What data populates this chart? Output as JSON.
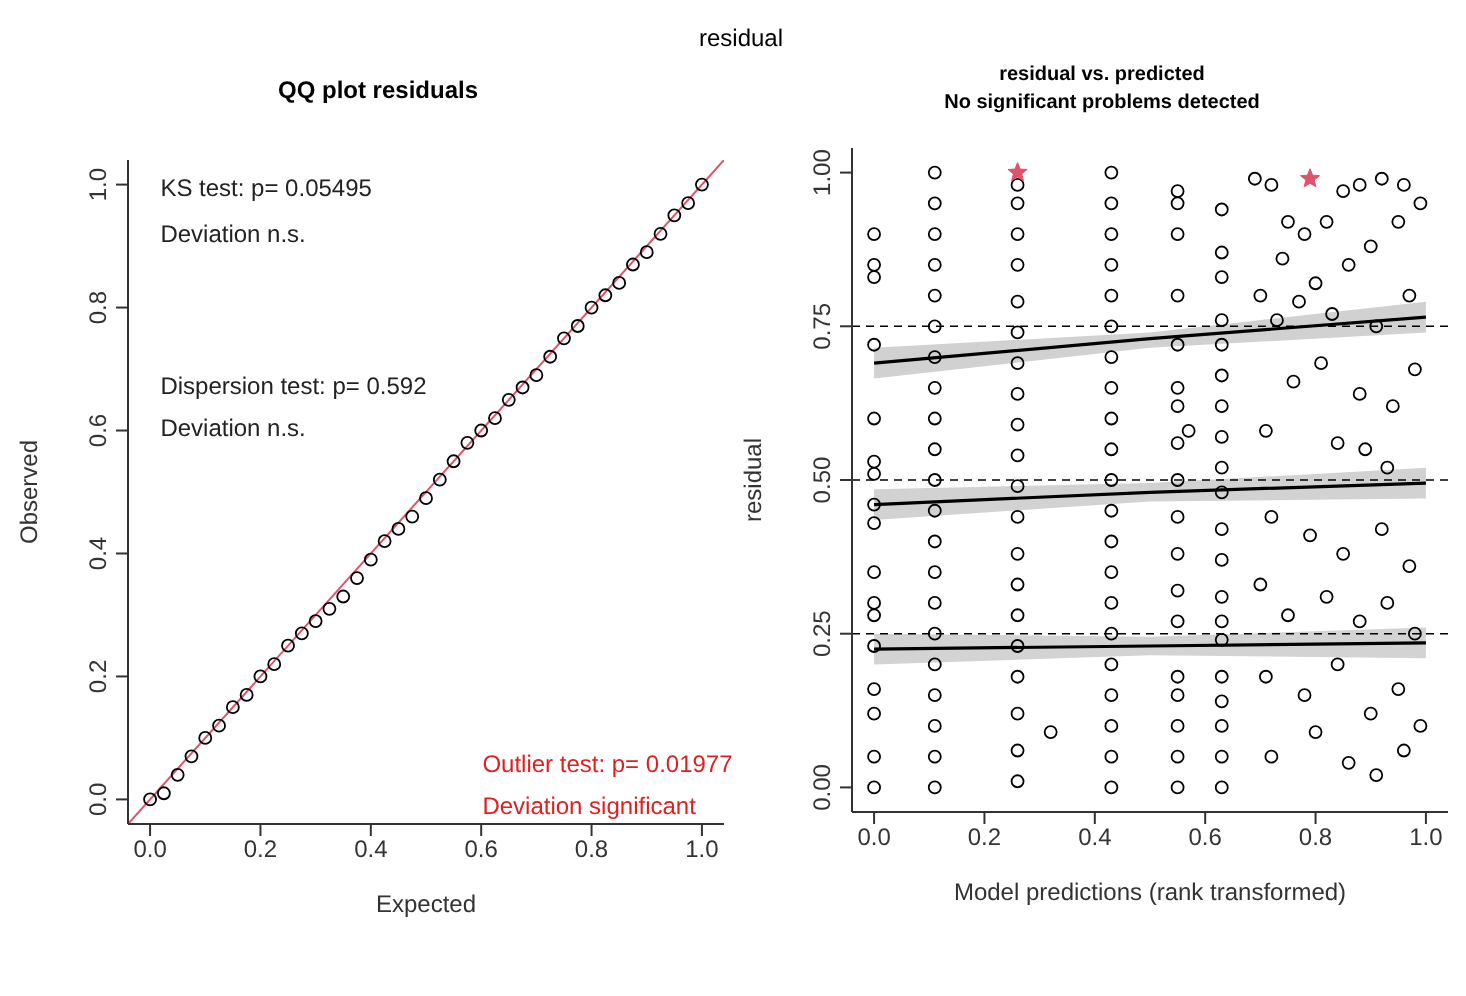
{
  "chart_data": [
    {
      "type": "scatter",
      "title": "QQ plot residuals",
      "xlabel": "Expected",
      "ylabel": "Observed",
      "marker": "circle",
      "annotations": [
        "residual",
        "KS test: p= 0.05495",
        "Deviation  n.s.",
        "Dispersion test: p= 0.592",
        "Deviation  n.s.",
        "Outlier test: p= 0.01977",
        "Deviation  significant"
      ],
      "xlim": [
        -0.04,
        1.04
      ],
      "ylim": [
        -0.04,
        1.04
      ],
      "xticks": [
        {
          "value": 0,
          "label": "0.0"
        },
        {
          "value": 0.2,
          "label": "0.2"
        },
        {
          "value": 0.4,
          "label": "0.4"
        },
        {
          "value": 0.6,
          "label": "0.6"
        },
        {
          "value": 0.8,
          "label": "0.8"
        },
        {
          "value": 1,
          "label": "1.0"
        }
      ],
      "yticks": [
        {
          "value": 0,
          "label": "0.0"
        },
        {
          "value": 0.2,
          "label": "0.2"
        },
        {
          "value": 0.4,
          "label": "0.4"
        },
        {
          "value": 0.6,
          "label": "0.6"
        },
        {
          "value": 0.8,
          "label": "0.8"
        },
        {
          "value": 1,
          "label": "1.0"
        }
      ],
      "series": [
        {
          "color": "#000000",
          "x": [
            0,
            0.025,
            0.05,
            0.075,
            0.1,
            0.125,
            0.15,
            0.175,
            0.2,
            0.225,
            0.25,
            0.275,
            0.3,
            0.325,
            0.35,
            0.375,
            0.4,
            0.425,
            0.45,
            0.475,
            0.5,
            0.525,
            0.55,
            0.575,
            0.6,
            0.625,
            0.65,
            0.675,
            0.7,
            0.725,
            0.75,
            0.775,
            0.8,
            0.825,
            0.85,
            0.875,
            0.9,
            0.925,
            0.95,
            0.975,
            1
          ],
          "values": [
            0,
            0.01,
            0.04,
            0.07,
            0.1,
            0.12,
            0.15,
            0.17,
            0.2,
            0.22,
            0.25,
            0.27,
            0.29,
            0.31,
            0.33,
            0.36,
            0.39,
            0.42,
            0.44,
            0.46,
            0.49,
            0.52,
            0.55,
            0.58,
            0.6,
            0.62,
            0.65,
            0.67,
            0.69,
            0.72,
            0.75,
            0.77,
            0.8,
            0.82,
            0.84,
            0.87,
            0.89,
            0.92,
            0.95,
            0.97,
            1
          ]
        },
        {
          "type": "line",
          "color": "#df536b",
          "marker": "none",
          "x": [
            -0.04,
            1.04
          ],
          "values": [
            -0.04,
            1.04
          ]
        }
      ]
    },
    {
      "type": "scatter",
      "title": "residual vs. predicted",
      "subtitle": "No significant problems detected",
      "xlabel": "Model predictions (rank transformed)",
      "ylabel": "residual",
      "marker": "circle",
      "xlim": [
        -0.04,
        1.04
      ],
      "ylim": [
        -0.04,
        1.04
      ],
      "xticks": [
        {
          "value": 0,
          "label": "0.0"
        },
        {
          "value": 0.2,
          "label": "0.2"
        },
        {
          "value": 0.4,
          "label": "0.4"
        },
        {
          "value": 0.6,
          "label": "0.6"
        },
        {
          "value": 0.8,
          "label": "0.8"
        },
        {
          "value": 1,
          "label": "1.0"
        }
      ],
      "yticks": [
        {
          "value": 0,
          "label": "0.00"
        },
        {
          "value": 0.25,
          "label": "0.25"
        },
        {
          "value": 0.5,
          "label": "0.50"
        },
        {
          "value": 0.75,
          "label": "0.75"
        },
        {
          "value": 1,
          "label": "1.00"
        }
      ],
      "ref_lines": [
        {
          "axis": "y",
          "value": 0.25,
          "line_style": "dashed"
        },
        {
          "axis": "y",
          "value": 0.5,
          "line_style": "dashed"
        },
        {
          "axis": "y",
          "value": 0.75,
          "line_style": "dashed"
        }
      ],
      "series": [
        {
          "color": "#000000",
          "x": [
            0,
            0,
            0,
            0,
            0,
            0,
            0,
            0,
            0,
            0,
            0,
            0,
            0,
            0,
            0,
            0,
            0,
            0.11,
            0.11,
            0.11,
            0.11,
            0.11,
            0.11,
            0.11,
            0.11,
            0.11,
            0.11,
            0.11,
            0.11,
            0.11,
            0.11,
            0.11,
            0.11,
            0.11,
            0.11,
            0.11,
            0.11,
            0.11,
            0.26,
            0.26,
            0.26,
            0.26,
            0.26,
            0.26,
            0.26,
            0.26,
            0.26,
            0.26,
            0.26,
            0.26,
            0.26,
            0.26,
            0.26,
            0.26,
            0.26,
            0.26,
            0.26,
            0.26,
            0.32,
            0.43,
            0.43,
            0.43,
            0.43,
            0.43,
            0.43,
            0.43,
            0.43,
            0.43,
            0.43,
            0.43,
            0.43,
            0.43,
            0.43,
            0.43,
            0.43,
            0.43,
            0.43,
            0.43,
            0.43,
            0.43,
            0.55,
            0.55,
            0.55,
            0.55,
            0.55,
            0.55,
            0.55,
            0.55,
            0.55,
            0.55,
            0.55,
            0.55,
            0.55,
            0.55,
            0.55,
            0.55,
            0.55,
            0.55,
            0.57,
            0.63,
            0.63,
            0.63,
            0.63,
            0.63,
            0.63,
            0.63,
            0.63,
            0.63,
            0.63,
            0.63,
            0.63,
            0.63,
            0.63,
            0.63,
            0.63,
            0.63,
            0.63,
            0.63,
            0.63,
            0.69,
            0.72,
            0.75,
            0.78,
            0.82,
            0.85,
            0.88,
            0.92,
            0.96,
            0.99,
            0.7,
            0.74,
            0.8,
            0.86,
            0.9,
            0.95,
            0.73,
            0.77,
            0.83,
            0.91,
            0.97,
            0.76,
            0.81,
            0.88,
            0.94,
            0.98,
            0.71,
            0.84,
            0.89,
            0.93,
            0.72,
            0.79,
            0.85,
            0.92,
            0.97,
            0.7,
            0.75,
            0.82,
            0.88,
            0.93,
            0.98,
            0.71,
            0.78,
            0.84,
            0.9,
            0.95,
            0.99,
            0.72,
            0.8,
            0.86,
            0.91,
            0.96
          ],
          "values": [
            0.9,
            0.85,
            0.83,
            0.72,
            0.6,
            0.53,
            0.51,
            0.46,
            0.43,
            0.35,
            0.3,
            0.28,
            0.23,
            0.16,
            0.12,
            0.05,
            0,
            0,
            0.05,
            0.1,
            0.15,
            0.2,
            0.25,
            0.3,
            0.35,
            0.4,
            0.45,
            0.5,
            0.55,
            0.6,
            0.65,
            0.7,
            0.75,
            0.8,
            0.85,
            0.9,
            0.95,
            1,
            0.01,
            0.06,
            0.12,
            0.18,
            0.23,
            0.28,
            0.33,
            0.38,
            0.44,
            0.49,
            0.54,
            0.59,
            0.64,
            0.69,
            0.74,
            0.79,
            0.85,
            0.9,
            0.95,
            0.98,
            0.09,
            0,
            0.05,
            0.1,
            0.15,
            0.2,
            0.25,
            0.3,
            0.35,
            0.4,
            0.45,
            0.5,
            0.55,
            0.6,
            0.65,
            0.7,
            0.75,
            0.8,
            0.85,
            0.9,
            0.95,
            1,
            0,
            0.05,
            0.1,
            0.15,
            0.18,
            0.27,
            0.32,
            0.38,
            0.44,
            0.5,
            0.56,
            0.62,
            0.65,
            0.72,
            0.8,
            0.9,
            0.95,
            0.97,
            0.58,
            0,
            0.05,
            0.1,
            0.14,
            0.18,
            0.24,
            0.27,
            0.31,
            0.37,
            0.42,
            0.48,
            0.52,
            0.57,
            0.62,
            0.67,
            0.72,
            0.76,
            0.83,
            0.87,
            0.94,
            0.99,
            0.98,
            0.92,
            0.9,
            0.92,
            0.97,
            0.98,
            0.99,
            0.98,
            0.95,
            0.8,
            0.86,
            0.82,
            0.85,
            0.88,
            0.92,
            0.76,
            0.79,
            0.77,
            0.75,
            0.8,
            0.66,
            0.69,
            0.64,
            0.62,
            0.68,
            0.58,
            0.56,
            0.55,
            0.52,
            0.44,
            0.41,
            0.38,
            0.42,
            0.36,
            0.33,
            0.28,
            0.31,
            0.27,
            0.3,
            0.25,
            0.18,
            0.15,
            0.2,
            0.12,
            0.16,
            0.1,
            0.05,
            0.09,
            0.04,
            0.02,
            0.06
          ]
        },
        {
          "color": "#df536b",
          "marker": "star",
          "x": [
            0.26,
            0.79
          ],
          "values": [
            1,
            0.99
          ]
        },
        {
          "type": "line",
          "color": "#000000",
          "marker": "none",
          "x": [
            0,
            0.5,
            1
          ],
          "values": [
            0.69,
            0.73,
            0.765
          ],
          "lower": [
            0.665,
            0.715,
            0.74
          ],
          "upper": [
            0.715,
            0.74,
            0.79
          ]
        },
        {
          "type": "line",
          "color": "#000000",
          "marker": "none",
          "x": [
            0,
            0.5,
            1
          ],
          "values": [
            0.46,
            0.48,
            0.495
          ],
          "lower": [
            0.435,
            0.465,
            0.47
          ],
          "upper": [
            0.485,
            0.495,
            0.52
          ]
        },
        {
          "type": "line",
          "color": "#000000",
          "marker": "none",
          "x": [
            0,
            0.5,
            1
          ],
          "values": [
            0.225,
            0.23,
            0.235
          ],
          "lower": [
            0.2,
            0.215,
            0.21
          ],
          "upper": [
            0.25,
            0.245,
            0.26
          ]
        }
      ]
    }
  ]
}
